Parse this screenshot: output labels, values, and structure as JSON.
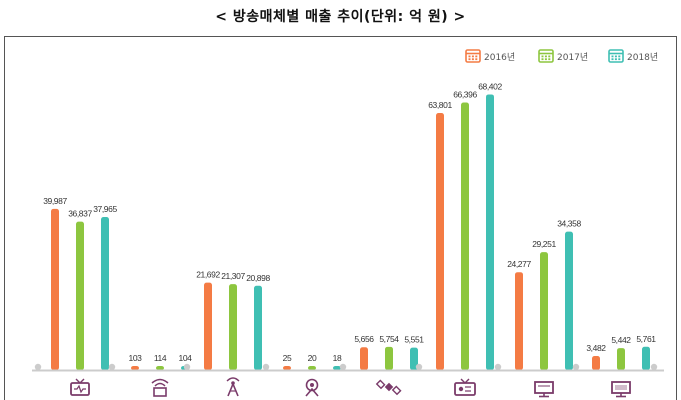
{
  "title": "< 방송매체별 매출 추이(단위: 억 원) >",
  "colors": {
    "2016년": "#f47b44",
    "2017년": "#8dc63f",
    "2018년": "#3fbfb3",
    "axis": "#cccccc",
    "icon": "#7a3b6a"
  },
  "chart_data": {
    "type": "bar",
    "title": "< 방송매체별 매출 추이(단위: 억 원) >",
    "xlabel": "",
    "ylabel": "",
    "ylim": [
      0,
      70000
    ],
    "grid": false,
    "legend_position": "top-right",
    "categories": [
      "tv-icon",
      "wifi-box-icon",
      "antenna-tower-icon",
      "radio-broadcast-icon",
      "satellite-icon",
      "cable-tv-icon",
      "monitor-icon",
      "desktop-icon"
    ],
    "series": [
      {
        "name": "2016년",
        "values": [
          39987,
          103,
          21692,
          25,
          5656,
          63801,
          24277,
          3482
        ],
        "labels": [
          "39,987",
          "103",
          "21,692",
          "25",
          "5,656",
          "63,801",
          "24,277",
          "3,482"
        ]
      },
      {
        "name": "2017년",
        "values": [
          36837,
          114,
          21307,
          20,
          5754,
          66396,
          29251,
          5442
        ],
        "labels": [
          "36,837",
          "114",
          "21,307",
          "20",
          "5,754",
          "66,396",
          "29,251",
          "5,442"
        ]
      },
      {
        "name": "2018년",
        "values": [
          37965,
          104,
          20898,
          18,
          5551,
          68402,
          34358,
          5761
        ],
        "labels": [
          "37,965",
          "104",
          "20,898",
          "18",
          "5,551",
          "68,402",
          "34,358",
          "5,761"
        ]
      }
    ]
  }
}
